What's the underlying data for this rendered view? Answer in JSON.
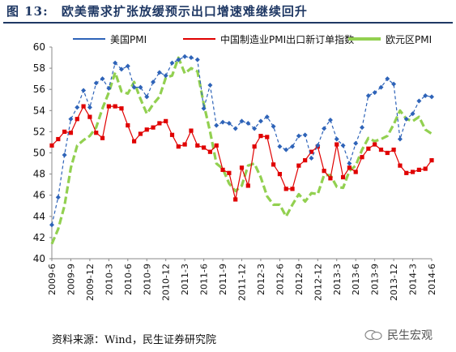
{
  "figure": {
    "label": "图 13:",
    "title": "欧美需求扩张放缓预示出口增速难继续回升",
    "source": "资料来源：Wind，民生证券研究院",
    "watermark": "民生宏观"
  },
  "colors": {
    "us": "#2e63b8",
    "china": "#e00000",
    "euro": "#92d050",
    "title": "#1f3864"
  },
  "chart_data": {
    "type": "line",
    "ylim": [
      40,
      60
    ],
    "yticks": [
      "40",
      "42",
      "44",
      "46",
      "48",
      "50",
      "52",
      "54",
      "56",
      "58",
      "60"
    ],
    "xtick_labels": [
      "2009-6",
      "2009-9",
      "2009-12",
      "2010-3",
      "2010-6",
      "2010-9",
      "2010-12",
      "2011-3",
      "2011-6",
      "2011-9",
      "2011-12",
      "2012-3",
      "2012-6",
      "2012-9",
      "2012-12",
      "2013-3",
      "2013-6",
      "2013-9",
      "2013-12",
      "2014-3",
      "2014-6"
    ],
    "x": [
      "2009-6",
      "2009-7",
      "2009-8",
      "2009-9",
      "2009-10",
      "2009-11",
      "2009-12",
      "2010-1",
      "2010-2",
      "2010-3",
      "2010-4",
      "2010-5",
      "2010-6",
      "2010-7",
      "2010-8",
      "2010-9",
      "2010-10",
      "2010-11",
      "2010-12",
      "2011-1",
      "2011-2",
      "2011-3",
      "2011-4",
      "2011-5",
      "2011-6",
      "2011-7",
      "2011-8",
      "2011-9",
      "2011-10",
      "2011-11",
      "2011-12",
      "2012-1",
      "2012-2",
      "2012-3",
      "2012-4",
      "2012-5",
      "2012-6",
      "2012-7",
      "2012-8",
      "2012-9",
      "2012-10",
      "2012-11",
      "2012-12",
      "2013-1",
      "2013-2",
      "2013-3",
      "2013-4",
      "2013-5",
      "2013-6",
      "2013-7",
      "2013-8",
      "2013-9",
      "2013-10",
      "2013-11",
      "2013-12",
      "2014-1",
      "2014-2",
      "2014-3",
      "2014-4",
      "2014-5",
      "2014-6"
    ],
    "series": [
      {
        "name": "美国PMI",
        "values": [
          43.2,
          45.8,
          49.8,
          53.2,
          54.3,
          55.9,
          54.3,
          56.6,
          57.0,
          56.1,
          58.5,
          57.9,
          58.2,
          56.2,
          56.2,
          55.3,
          56.7,
          57.6,
          57.3,
          58.5,
          58.8,
          59.1,
          59.0,
          58.8,
          54.2,
          56.4,
          52.6,
          52.9,
          52.8,
          52.3,
          53.0,
          52.8,
          52.3,
          53.0,
          53.4,
          52.5,
          50.6,
          50.3,
          50.6,
          51.6,
          51.7,
          49.5,
          50.7,
          52.3,
          53.1,
          51.3,
          50.7,
          49.0,
          50.9,
          52.4,
          55.4,
          55.7,
          56.2,
          57.0,
          56.5,
          51.3,
          53.2,
          53.7,
          54.9,
          55.4,
          55.3
        ]
      },
      {
        "name": "中国制造业PMI出口新订单指数",
        "values": [
          50.7,
          51.3,
          52.0,
          51.9,
          53.2,
          54.4,
          53.4,
          51.9,
          51.4,
          54.4,
          54.4,
          54.2,
          52.6,
          51.1,
          51.8,
          52.2,
          52.4,
          52.8,
          53.0,
          51.7,
          50.6,
          50.8,
          52.1,
          50.7,
          50.5,
          50.1,
          50.7,
          48.4,
          48.1,
          45.6,
          48.6,
          46.9,
          50.6,
          51.6,
          51.5,
          48.9,
          48.0,
          46.6,
          46.6,
          48.8,
          49.3,
          50.1,
          50.6,
          48.3,
          47.6,
          50.8,
          47.7,
          48.6,
          48.2,
          49.6,
          50.4,
          50.8,
          50.3,
          50.0,
          50.3,
          48.8,
          48.1,
          48.2,
          48.4,
          48.5,
          49.3
        ]
      },
      {
        "name": "欧元区PMI",
        "values": [
          41.4,
          42.8,
          45.0,
          48.6,
          50.7,
          51.2,
          51.6,
          52.4,
          54.2,
          55.7,
          57.6,
          55.8,
          55.6,
          56.7,
          55.1,
          53.7,
          54.6,
          55.3,
          57.1,
          57.3,
          59.0,
          57.5,
          58.0,
          57.7,
          54.6,
          52.0,
          49.0,
          48.5,
          47.1,
          46.4,
          46.9,
          48.8,
          49.0,
          47.7,
          45.9,
          45.1,
          45.1,
          44.0,
          45.1,
          46.1,
          45.4,
          46.2,
          46.1,
          47.9,
          47.9,
          46.8,
          46.7,
          48.3,
          48.8,
          50.3,
          51.4,
          51.1,
          51.3,
          51.6,
          52.7,
          54.0,
          53.2,
          53.0,
          53.4,
          52.2,
          51.8
        ]
      }
    ],
    "grid": false,
    "legend": "top"
  }
}
